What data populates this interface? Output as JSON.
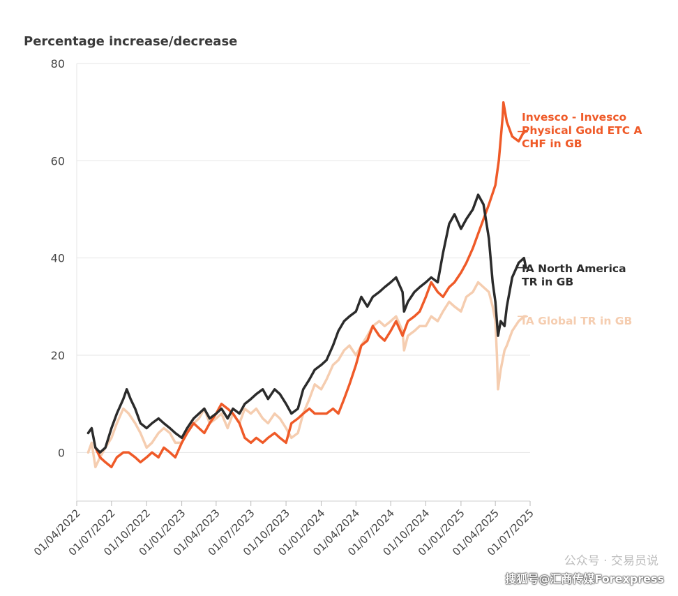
{
  "chart_data": {
    "type": "line",
    "ylabel": "Percentage increase/decrease",
    "ylim": [
      -10,
      80
    ],
    "yticks": [
      0,
      20,
      40,
      60,
      80
    ],
    "x_start": "2022-04-01",
    "x_end": "2025-07-01",
    "xticks": [
      "01/04/2022",
      "01/07/2022",
      "01/10/2022",
      "01/01/2023",
      "01/04/2023",
      "01/07/2023",
      "01/10/2023",
      "01/01/2024",
      "01/04/2024",
      "01/07/2024",
      "01/10/2024",
      "01/01/2025",
      "01/04/2025",
      "01/07/2025"
    ],
    "grid": true,
    "legend": "right-end-labels",
    "series": [
      {
        "name": "IA Global TR in GB",
        "label_lines": [
          "IA Global TR in GB"
        ],
        "color": "#f5cdb0",
        "points": [
          [
            "2022-05-01",
            0
          ],
          [
            "2022-05-10",
            2
          ],
          [
            "2022-05-20",
            -3
          ],
          [
            "2022-06-01",
            -1
          ],
          [
            "2022-06-15",
            1
          ],
          [
            "2022-07-01",
            3
          ],
          [
            "2022-07-15",
            6
          ],
          [
            "2022-08-01",
            9
          ],
          [
            "2022-08-15",
            8
          ],
          [
            "2022-09-01",
            6
          ],
          [
            "2022-09-15",
            4
          ],
          [
            "2022-10-01",
            1
          ],
          [
            "2022-10-15",
            2
          ],
          [
            "2022-11-01",
            4
          ],
          [
            "2022-11-15",
            5
          ],
          [
            "2022-12-01",
            4
          ],
          [
            "2022-12-15",
            2
          ],
          [
            "2023-01-01",
            2
          ],
          [
            "2023-01-15",
            4
          ],
          [
            "2023-02-01",
            6
          ],
          [
            "2023-02-15",
            7
          ],
          [
            "2023-03-01",
            9
          ],
          [
            "2023-03-15",
            6
          ],
          [
            "2023-04-01",
            7
          ],
          [
            "2023-04-15",
            8
          ],
          [
            "2023-05-01",
            5
          ],
          [
            "2023-05-15",
            8
          ],
          [
            "2023-06-01",
            6
          ],
          [
            "2023-06-15",
            9
          ],
          [
            "2023-07-01",
            8
          ],
          [
            "2023-07-15",
            9
          ],
          [
            "2023-08-01",
            7
          ],
          [
            "2023-08-15",
            6
          ],
          [
            "2023-09-01",
            8
          ],
          [
            "2023-09-15",
            7
          ],
          [
            "2023-10-01",
            5
          ],
          [
            "2023-10-15",
            3
          ],
          [
            "2023-11-01",
            4
          ],
          [
            "2023-11-15",
            8
          ],
          [
            "2023-12-01",
            11
          ],
          [
            "2023-12-15",
            14
          ],
          [
            "2024-01-01",
            13
          ],
          [
            "2024-01-15",
            15
          ],
          [
            "2024-02-01",
            18
          ],
          [
            "2024-02-15",
            19
          ],
          [
            "2024-03-01",
            21
          ],
          [
            "2024-03-15",
            22
          ],
          [
            "2024-04-01",
            20
          ],
          [
            "2024-04-15",
            22
          ],
          [
            "2024-05-01",
            24
          ],
          [
            "2024-05-15",
            26
          ],
          [
            "2024-06-01",
            27
          ],
          [
            "2024-06-15",
            26
          ],
          [
            "2024-07-01",
            27
          ],
          [
            "2024-07-15",
            28
          ],
          [
            "2024-08-01",
            25
          ],
          [
            "2024-08-05",
            21
          ],
          [
            "2024-08-15",
            24
          ],
          [
            "2024-09-01",
            25
          ],
          [
            "2024-09-15",
            26
          ],
          [
            "2024-10-01",
            26
          ],
          [
            "2024-10-15",
            28
          ],
          [
            "2024-11-01",
            27
          ],
          [
            "2024-11-15",
            29
          ],
          [
            "2024-12-01",
            31
          ],
          [
            "2024-12-15",
            30
          ],
          [
            "2025-01-01",
            29
          ],
          [
            "2025-01-15",
            32
          ],
          [
            "2025-02-01",
            33
          ],
          [
            "2025-02-15",
            35
          ],
          [
            "2025-03-01",
            34
          ],
          [
            "2025-03-15",
            33
          ],
          [
            "2025-03-25",
            30
          ],
          [
            "2025-04-01",
            27
          ],
          [
            "2025-04-05",
            20
          ],
          [
            "2025-04-08",
            13
          ],
          [
            "2025-04-15",
            17
          ],
          [
            "2025-04-25",
            21
          ],
          [
            "2025-05-01",
            22
          ],
          [
            "2025-05-15",
            25
          ],
          [
            "2025-06-01",
            27
          ],
          [
            "2025-06-15",
            28
          ],
          [
            "2025-06-20",
            28
          ]
        ]
      },
      {
        "name": "Invesco - Invesco Physical Gold ETC A CHF in GB",
        "label_lines": [
          "Invesco - Invesco",
          "Physical Gold ETC A",
          "CHF in GB"
        ],
        "color": "#ef5a28",
        "points": [
          [
            "2022-05-20",
            1
          ],
          [
            "2022-06-01",
            -1
          ],
          [
            "2022-06-15",
            -2
          ],
          [
            "2022-07-01",
            -3
          ],
          [
            "2022-07-15",
            -1
          ],
          [
            "2022-08-01",
            0
          ],
          [
            "2022-08-15",
            0
          ],
          [
            "2022-09-01",
            -1
          ],
          [
            "2022-09-15",
            -2
          ],
          [
            "2022-10-01",
            -1
          ],
          [
            "2022-10-15",
            0
          ],
          [
            "2022-11-01",
            -1
          ],
          [
            "2022-11-15",
            1
          ],
          [
            "2022-12-01",
            0
          ],
          [
            "2022-12-15",
            -1
          ],
          [
            "2023-01-01",
            2
          ],
          [
            "2023-01-15",
            4
          ],
          [
            "2023-02-01",
            6
          ],
          [
            "2023-02-15",
            5
          ],
          [
            "2023-03-01",
            4
          ],
          [
            "2023-03-15",
            6
          ],
          [
            "2023-04-01",
            8
          ],
          [
            "2023-04-15",
            10
          ],
          [
            "2023-05-01",
            9
          ],
          [
            "2023-05-15",
            8
          ],
          [
            "2023-06-01",
            6
          ],
          [
            "2023-06-15",
            3
          ],
          [
            "2023-07-01",
            2
          ],
          [
            "2023-07-15",
            3
          ],
          [
            "2023-08-01",
            2
          ],
          [
            "2023-08-15",
            3
          ],
          [
            "2023-09-01",
            4
          ],
          [
            "2023-09-15",
            3
          ],
          [
            "2023-10-01",
            2
          ],
          [
            "2023-10-15",
            6
          ],
          [
            "2023-11-01",
            7
          ],
          [
            "2023-11-15",
            8
          ],
          [
            "2023-12-01",
            9
          ],
          [
            "2023-12-15",
            8
          ],
          [
            "2024-01-01",
            8
          ],
          [
            "2024-01-15",
            8
          ],
          [
            "2024-02-01",
            9
          ],
          [
            "2024-02-15",
            8
          ],
          [
            "2024-03-01",
            11
          ],
          [
            "2024-03-15",
            14
          ],
          [
            "2024-04-01",
            18
          ],
          [
            "2024-04-15",
            22
          ],
          [
            "2024-05-01",
            23
          ],
          [
            "2024-05-15",
            26
          ],
          [
            "2024-06-01",
            24
          ],
          [
            "2024-06-15",
            23
          ],
          [
            "2024-07-01",
            25
          ],
          [
            "2024-07-15",
            27
          ],
          [
            "2024-08-01",
            24
          ],
          [
            "2024-08-15",
            27
          ],
          [
            "2024-09-01",
            28
          ],
          [
            "2024-09-15",
            29
          ],
          [
            "2024-10-01",
            32
          ],
          [
            "2024-10-15",
            35
          ],
          [
            "2024-11-01",
            33
          ],
          [
            "2024-11-15",
            32
          ],
          [
            "2024-12-01",
            34
          ],
          [
            "2024-12-15",
            35
          ],
          [
            "2025-01-01",
            37
          ],
          [
            "2025-01-15",
            39
          ],
          [
            "2025-02-01",
            42
          ],
          [
            "2025-02-15",
            45
          ],
          [
            "2025-03-01",
            48
          ],
          [
            "2025-03-15",
            51
          ],
          [
            "2025-04-01",
            55
          ],
          [
            "2025-04-10",
            60
          ],
          [
            "2025-04-20",
            69
          ],
          [
            "2025-04-22",
            72
          ],
          [
            "2025-05-01",
            68
          ],
          [
            "2025-05-15",
            65
          ],
          [
            "2025-06-01",
            64
          ],
          [
            "2025-06-15",
            66
          ],
          [
            "2025-06-20",
            66
          ]
        ]
      },
      {
        "name": "IA North America TR in GB",
        "label_lines": [
          "IA North America",
          "TR in GB"
        ],
        "color": "#2b2b2b",
        "points": [
          [
            "2022-05-01",
            4
          ],
          [
            "2022-05-10",
            5
          ],
          [
            "2022-05-20",
            1
          ],
          [
            "2022-06-01",
            0
          ],
          [
            "2022-06-15",
            1
          ],
          [
            "2022-07-01",
            5
          ],
          [
            "2022-07-15",
            8
          ],
          [
            "2022-08-01",
            11
          ],
          [
            "2022-08-10",
            13
          ],
          [
            "2022-08-20",
            11
          ],
          [
            "2022-09-01",
            9
          ],
          [
            "2022-09-15",
            6
          ],
          [
            "2022-10-01",
            5
          ],
          [
            "2022-10-15",
            6
          ],
          [
            "2022-11-01",
            7
          ],
          [
            "2022-11-15",
            6
          ],
          [
            "2022-12-01",
            5
          ],
          [
            "2022-12-15",
            4
          ],
          [
            "2023-01-01",
            3
          ],
          [
            "2023-01-15",
            5
          ],
          [
            "2023-02-01",
            7
          ],
          [
            "2023-02-15",
            8
          ],
          [
            "2023-03-01",
            9
          ],
          [
            "2023-03-15",
            7
          ],
          [
            "2023-04-01",
            8
          ],
          [
            "2023-04-15",
            9
          ],
          [
            "2023-05-01",
            7
          ],
          [
            "2023-05-15",
            9
          ],
          [
            "2023-06-01",
            8
          ],
          [
            "2023-06-15",
            10
          ],
          [
            "2023-07-01",
            11
          ],
          [
            "2023-07-15",
            12
          ],
          [
            "2023-08-01",
            13
          ],
          [
            "2023-08-15",
            11
          ],
          [
            "2023-09-01",
            13
          ],
          [
            "2023-09-15",
            12
          ],
          [
            "2023-10-01",
            10
          ],
          [
            "2023-10-15",
            8
          ],
          [
            "2023-11-01",
            9
          ],
          [
            "2023-11-15",
            13
          ],
          [
            "2023-12-01",
            15
          ],
          [
            "2023-12-15",
            17
          ],
          [
            "2024-01-01",
            18
          ],
          [
            "2024-01-15",
            19
          ],
          [
            "2024-02-01",
            22
          ],
          [
            "2024-02-15",
            25
          ],
          [
            "2024-03-01",
            27
          ],
          [
            "2024-03-15",
            28
          ],
          [
            "2024-04-01",
            29
          ],
          [
            "2024-04-15",
            32
          ],
          [
            "2024-05-01",
            30
          ],
          [
            "2024-05-15",
            32
          ],
          [
            "2024-06-01",
            33
          ],
          [
            "2024-06-15",
            34
          ],
          [
            "2024-07-01",
            35
          ],
          [
            "2024-07-15",
            36
          ],
          [
            "2024-08-01",
            33
          ],
          [
            "2024-08-05",
            29
          ],
          [
            "2024-08-15",
            31
          ],
          [
            "2024-09-01",
            33
          ],
          [
            "2024-09-15",
            34
          ],
          [
            "2024-10-01",
            35
          ],
          [
            "2024-10-15",
            36
          ],
          [
            "2024-11-01",
            35
          ],
          [
            "2024-11-15",
            41
          ],
          [
            "2024-12-01",
            47
          ],
          [
            "2024-12-15",
            49
          ],
          [
            "2025-01-01",
            46
          ],
          [
            "2025-01-15",
            48
          ],
          [
            "2025-02-01",
            50
          ],
          [
            "2025-02-15",
            53
          ],
          [
            "2025-03-01",
            51
          ],
          [
            "2025-03-15",
            44
          ],
          [
            "2025-03-25",
            35
          ],
          [
            "2025-04-01",
            31
          ],
          [
            "2025-04-08",
            24
          ],
          [
            "2025-04-15",
            27
          ],
          [
            "2025-04-25",
            26
          ],
          [
            "2025-05-01",
            30
          ],
          [
            "2025-05-15",
            36
          ],
          [
            "2025-06-01",
            39
          ],
          [
            "2025-06-15",
            40
          ],
          [
            "2025-06-20",
            38
          ]
        ]
      }
    ]
  },
  "watermark": {
    "wechat": "公众号 · 交易员说",
    "sohu": "搜狐号@汇商传媒Forexpress"
  }
}
